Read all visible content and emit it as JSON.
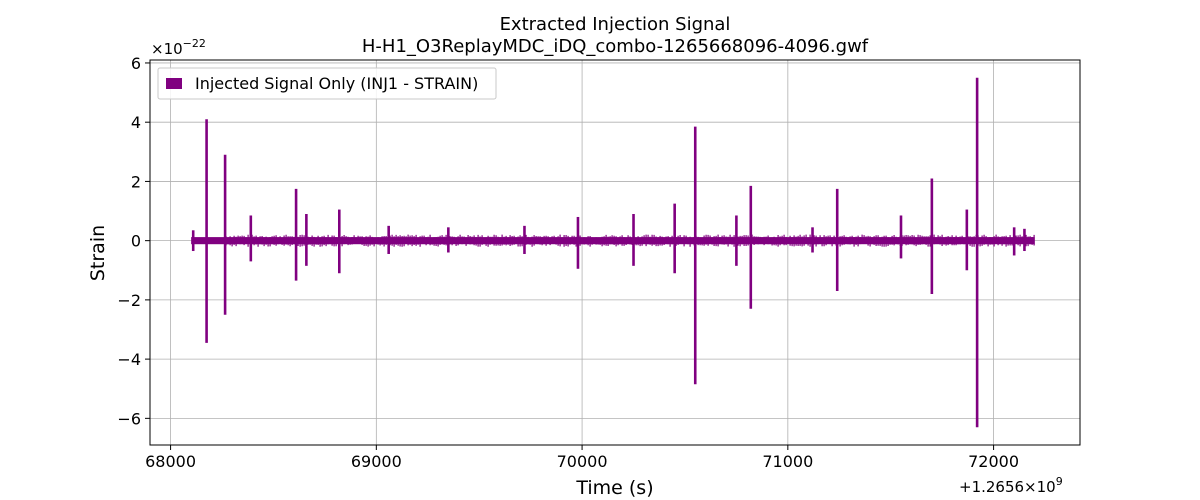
{
  "chart_data": {
    "type": "line",
    "title": "Extracted Injection Signal",
    "subtitle": "H-H1_O3ReplayMDC_iDQ_combo-1265668096-4096.gwf",
    "xlabel": "Time (s)",
    "ylabel": "Strain",
    "x_offset_label": "+1.2656×10",
    "x_offset_exp": "9",
    "y_multiplier_label": "×10",
    "y_multiplier_exp": "−22",
    "xlim": [
      67900,
      72420
    ],
    "ylim": [
      -6.9,
      6.1
    ],
    "xticks": [
      68000,
      69000,
      70000,
      71000,
      72000
    ],
    "xtick_labels": [
      "68000",
      "69000",
      "70000",
      "71000",
      "72000"
    ],
    "yticks": [
      -6,
      -4,
      -2,
      0,
      2,
      4,
      6
    ],
    "ytick_labels": [
      "−6",
      "−4",
      "−2",
      "0",
      "2",
      "4",
      "6"
    ],
    "grid": true,
    "legend_position": "top-left",
    "color": "#800080",
    "series": [
      {
        "name": "Injected Signal Only (INJ1 - STRAIN)",
        "x_range": [
          68100,
          72200
        ],
        "baseline_band": 0.12,
        "noise_band": 0.18,
        "noise_start": 68270,
        "spikes": [
          {
            "x": 68110,
            "max": 0.35,
            "min": -0.35
          },
          {
            "x": 68175,
            "max": 4.1,
            "min": -3.45
          },
          {
            "x": 68265,
            "max": 2.9,
            "min": -2.5
          },
          {
            "x": 68390,
            "max": 0.85,
            "min": -0.7
          },
          {
            "x": 68610,
            "max": 1.75,
            "min": -1.35
          },
          {
            "x": 68660,
            "max": 0.9,
            "min": -0.85
          },
          {
            "x": 68820,
            "max": 1.05,
            "min": -1.1
          },
          {
            "x": 69060,
            "max": 0.5,
            "min": -0.45
          },
          {
            "x": 69350,
            "max": 0.45,
            "min": -0.4
          },
          {
            "x": 69720,
            "max": 0.5,
            "min": -0.45
          },
          {
            "x": 69980,
            "max": 0.8,
            "min": -0.95
          },
          {
            "x": 70250,
            "max": 0.9,
            "min": -0.85
          },
          {
            "x": 70450,
            "max": 1.25,
            "min": -1.1
          },
          {
            "x": 70550,
            "max": 3.85,
            "min": -4.85
          },
          {
            "x": 70750,
            "max": 0.85,
            "min": -0.85
          },
          {
            "x": 70820,
            "max": 1.85,
            "min": -2.3
          },
          {
            "x": 71120,
            "max": 0.45,
            "min": -0.4
          },
          {
            "x": 71240,
            "max": 1.75,
            "min": -1.7
          },
          {
            "x": 71550,
            "max": 0.85,
            "min": -0.6
          },
          {
            "x": 71700,
            "max": 2.1,
            "min": -1.8
          },
          {
            "x": 71870,
            "max": 1.05,
            "min": -1.0
          },
          {
            "x": 71920,
            "max": 5.5,
            "min": -6.3
          },
          {
            "x": 72100,
            "max": 0.45,
            "min": -0.5
          },
          {
            "x": 72150,
            "max": 0.4,
            "min": -0.35
          }
        ]
      }
    ]
  }
}
